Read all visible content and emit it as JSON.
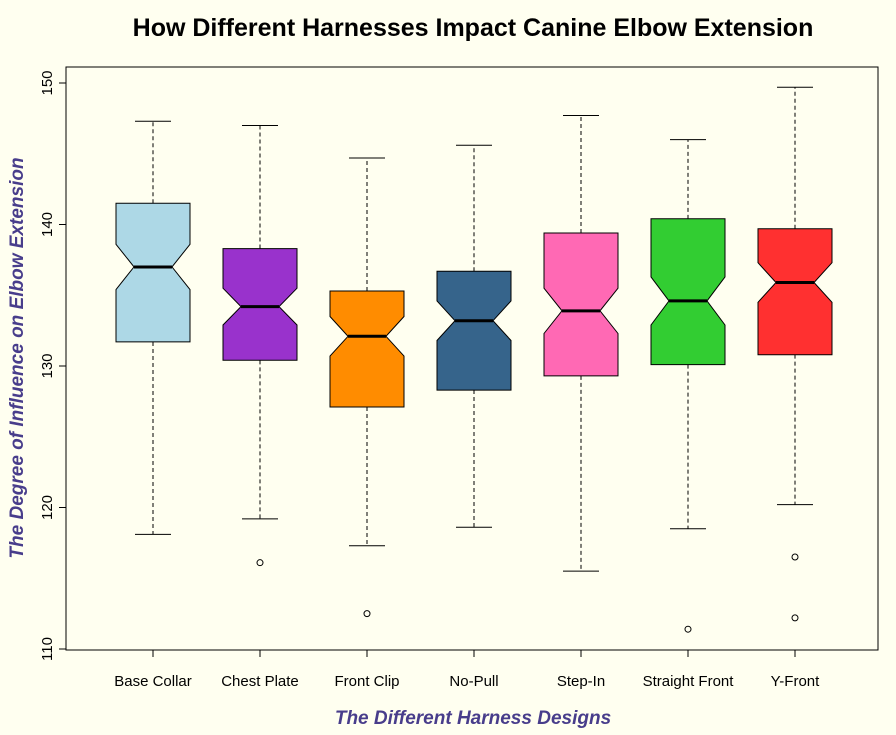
{
  "chart_data": {
    "type": "boxplot",
    "notched": true,
    "title": "How Different Harnesses Impact Canine Elbow Extension",
    "xlabel": "The Different Harness Designs",
    "ylabel": "The Degree of Influence on Elbow Extension",
    "ylim": [
      110,
      150
    ],
    "yticks": [
      "110",
      "120",
      "130",
      "140",
      "150"
    ],
    "label_color": "#483D8B",
    "background_color": "#FFFFF0",
    "series": [
      {
        "name": "Base Collar",
        "color": "#ADD8E6",
        "whisker_low": 118.1,
        "q1": 131.7,
        "median": 137.0,
        "q3": 141.5,
        "whisker_high": 147.3,
        "notch_low": 135.4,
        "notch_high": 138.6,
        "outliers": []
      },
      {
        "name": "Chest Plate",
        "color": "#9932CC",
        "whisker_low": 119.2,
        "q1": 130.4,
        "median": 134.2,
        "q3": 138.3,
        "whisker_high": 147.0,
        "notch_low": 132.9,
        "notch_high": 135.5,
        "outliers": [
          116.1
        ]
      },
      {
        "name": "Front Clip",
        "color": "#FF8C00",
        "whisker_low": 117.3,
        "q1": 127.1,
        "median": 132.1,
        "q3": 135.3,
        "whisker_high": 144.7,
        "notch_low": 130.7,
        "notch_high": 133.5,
        "outliers": [
          112.5
        ]
      },
      {
        "name": "No-Pull",
        "color": "#36648B",
        "whisker_low": 118.6,
        "q1": 128.3,
        "median": 133.2,
        "q3": 136.7,
        "whisker_high": 145.6,
        "notch_low": 131.8,
        "notch_high": 134.6,
        "outliers": []
      },
      {
        "name": "Step-In",
        "color": "#FF69B4",
        "whisker_low": 115.5,
        "q1": 129.3,
        "median": 133.9,
        "q3": 139.4,
        "whisker_high": 147.7,
        "notch_low": 132.3,
        "notch_high": 135.5,
        "outliers": []
      },
      {
        "name": "Straight Front",
        "color": "#32CD32",
        "whisker_low": 118.5,
        "q1": 130.1,
        "median": 134.6,
        "q3": 140.4,
        "whisker_high": 146.0,
        "notch_low": 132.9,
        "notch_high": 136.3,
        "outliers": [
          111.4
        ]
      },
      {
        "name": "Y-Front",
        "color": "#FF3030",
        "whisker_low": 120.2,
        "q1": 130.8,
        "median": 135.9,
        "q3": 139.7,
        "whisker_high": 149.7,
        "notch_low": 134.5,
        "notch_high": 137.3,
        "outliers": [
          116.5,
          112.2
        ]
      }
    ]
  }
}
